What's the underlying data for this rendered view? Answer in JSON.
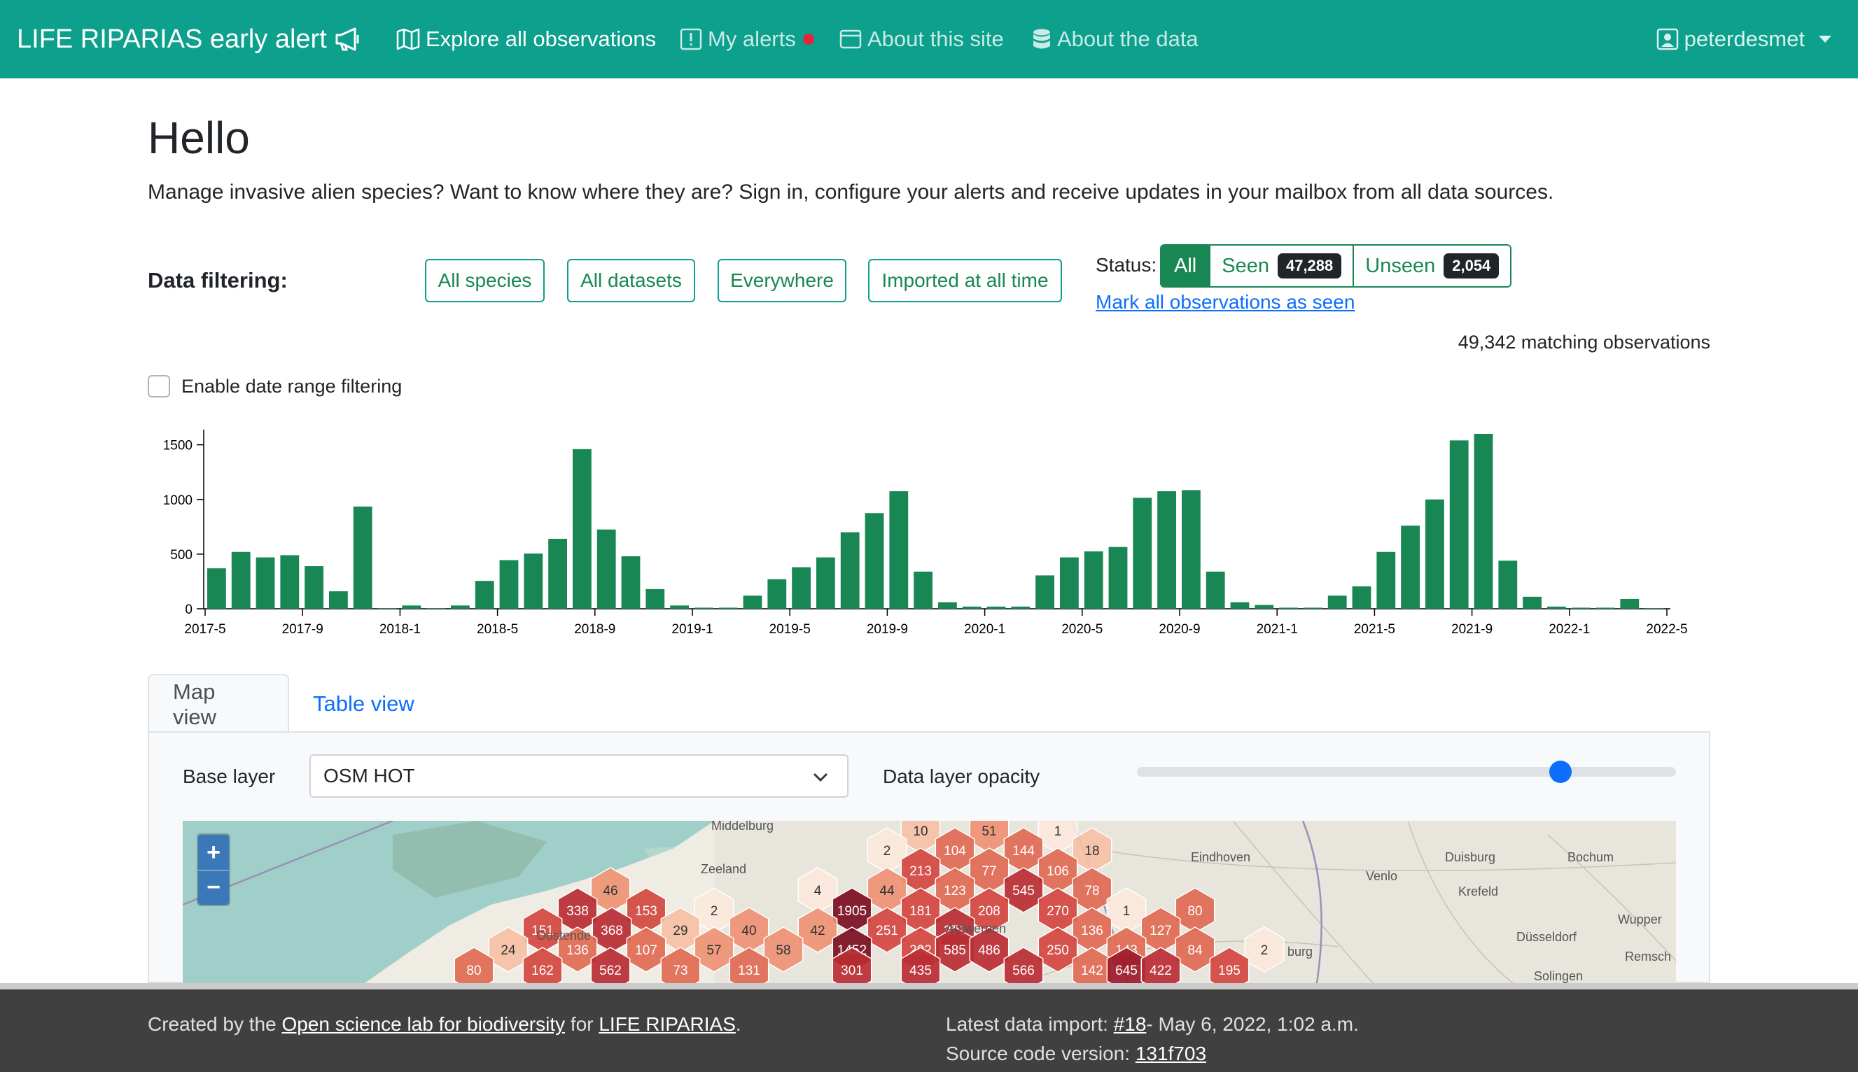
{
  "navbar": {
    "brand": "LIFE RIPARIAS early alert",
    "items": [
      {
        "label": "Explore all observations",
        "icon": "map-icon"
      },
      {
        "label": "My alerts",
        "icon": "alert-square-icon"
      },
      {
        "label": "About this site",
        "icon": "window-icon"
      },
      {
        "label": "About the data",
        "icon": "database-icon"
      }
    ],
    "user": "peterdesmet"
  },
  "page": {
    "title": "Hello",
    "lead": "Manage invasive alien species? Want to know where they are? Sign in, configure your alerts and receive updates in your mailbox from all data sources."
  },
  "filters": {
    "label": "Data filtering:",
    "species": "All species",
    "datasets": "All datasets",
    "area": "Everywhere",
    "imported": "Imported at all time"
  },
  "status": {
    "label": "Status:",
    "all": "All",
    "seen_label": "Seen",
    "seen_count": "47,288",
    "unseen_label": "Unseen",
    "unseen_count": "2,054",
    "mark_link": "Mark all observations as seen",
    "matching": "49,342 matching observations"
  },
  "date_filter": {
    "label": "Enable date range filtering",
    "checked": false
  },
  "chart_data": {
    "type": "bar",
    "color": "#198754",
    "ylim": [
      0,
      1600
    ],
    "yticks": [
      0,
      500,
      1000,
      1500
    ],
    "xtick_labels": [
      "2017-5",
      "2017-9",
      "2018-1",
      "2018-5",
      "2018-9",
      "2019-1",
      "2019-5",
      "2019-9",
      "2020-1",
      "2020-5",
      "2020-9",
      "2021-1",
      "2021-5",
      "2021-9",
      "2022-1",
      "2022-5"
    ],
    "categories": [
      "2017-5",
      "2017-6",
      "2017-7",
      "2017-8",
      "2017-9",
      "2017-10",
      "2017-11",
      "2017-12",
      "2018-1",
      "2018-2",
      "2018-3",
      "2018-4",
      "2018-5",
      "2018-6",
      "2018-7",
      "2018-8",
      "2018-9",
      "2018-10",
      "2018-11",
      "2018-12",
      "2019-1",
      "2019-2",
      "2019-3",
      "2019-4",
      "2019-5",
      "2019-6",
      "2019-7",
      "2019-8",
      "2019-9",
      "2019-10",
      "2019-11",
      "2019-12",
      "2020-1",
      "2020-2",
      "2020-3",
      "2020-4",
      "2020-5",
      "2020-6",
      "2020-7",
      "2020-8",
      "2020-9",
      "2020-10",
      "2020-11",
      "2020-12",
      "2021-1",
      "2021-2",
      "2021-3",
      "2021-4",
      "2021-5",
      "2021-6",
      "2021-7",
      "2021-8",
      "2021-9",
      "2021-10",
      "2021-11",
      "2021-12",
      "2022-1",
      "2022-2",
      "2022-3",
      "2022-4"
    ],
    "values": [
      370,
      520,
      470,
      490,
      390,
      160,
      935,
      5,
      30,
      5,
      30,
      255,
      445,
      505,
      640,
      1460,
      725,
      480,
      180,
      30,
      10,
      10,
      120,
      270,
      380,
      470,
      700,
      875,
      1075,
      340,
      60,
      20,
      20,
      20,
      305,
      470,
      525,
      565,
      1015,
      1075,
      1085,
      340,
      60,
      35,
      10,
      10,
      120,
      205,
      520,
      760,
      1000,
      1540,
      1600,
      440,
      110,
      20,
      10,
      10,
      90,
      5
    ]
  },
  "tabs": {
    "map": "Map view",
    "table": "Table view"
  },
  "map_controls": {
    "base_label": "Base layer",
    "base_value": "OSM HOT",
    "opacity_label": "Data layer opacity",
    "opacity": 0.75
  },
  "map": {
    "zoom_in": "+",
    "zoom_out": "−",
    "places": [
      "Middelburg",
      "Zeeland",
      "Oostende",
      "Antwerpen",
      "Eindhoven",
      "Venlo",
      "Duisburg",
      "Bochum",
      "Krefeld",
      "Düsseldorf",
      "Wupper",
      "Remsch",
      "Solingen",
      "burg"
    ],
    "hex_counts": [
      "10",
      "51",
      "1",
      "2",
      "104",
      "144",
      "18",
      "213",
      "77",
      "106",
      "4",
      "44",
      "123",
      "545",
      "78",
      "46",
      "338",
      "153",
      "2",
      "1905",
      "181",
      "208",
      "270",
      "1",
      "80",
      "151",
      "368",
      "29",
      "40",
      "42",
      "251",
      "371",
      "136",
      "127",
      "24",
      "136",
      "107",
      "57",
      "58",
      "1452",
      "292",
      "585",
      "486",
      "250",
      "143",
      "84",
      "2",
      "80",
      "162",
      "562",
      "73",
      "131",
      "301",
      "435",
      "566",
      "142",
      "645",
      "422",
      "195"
    ]
  },
  "footer": {
    "created_prefix": "Created by the ",
    "org_link": "Open science lab for biodiversity",
    "for_text": " for ",
    "project_link": "LIFE RIPARIAS",
    "period": ".",
    "import_prefix": "Latest data import: ",
    "import_link": "#18",
    "import_date": "- May 6, 2022, 1:02 a.m.",
    "source_prefix": "Source code version: ",
    "source_link": "131f703"
  }
}
